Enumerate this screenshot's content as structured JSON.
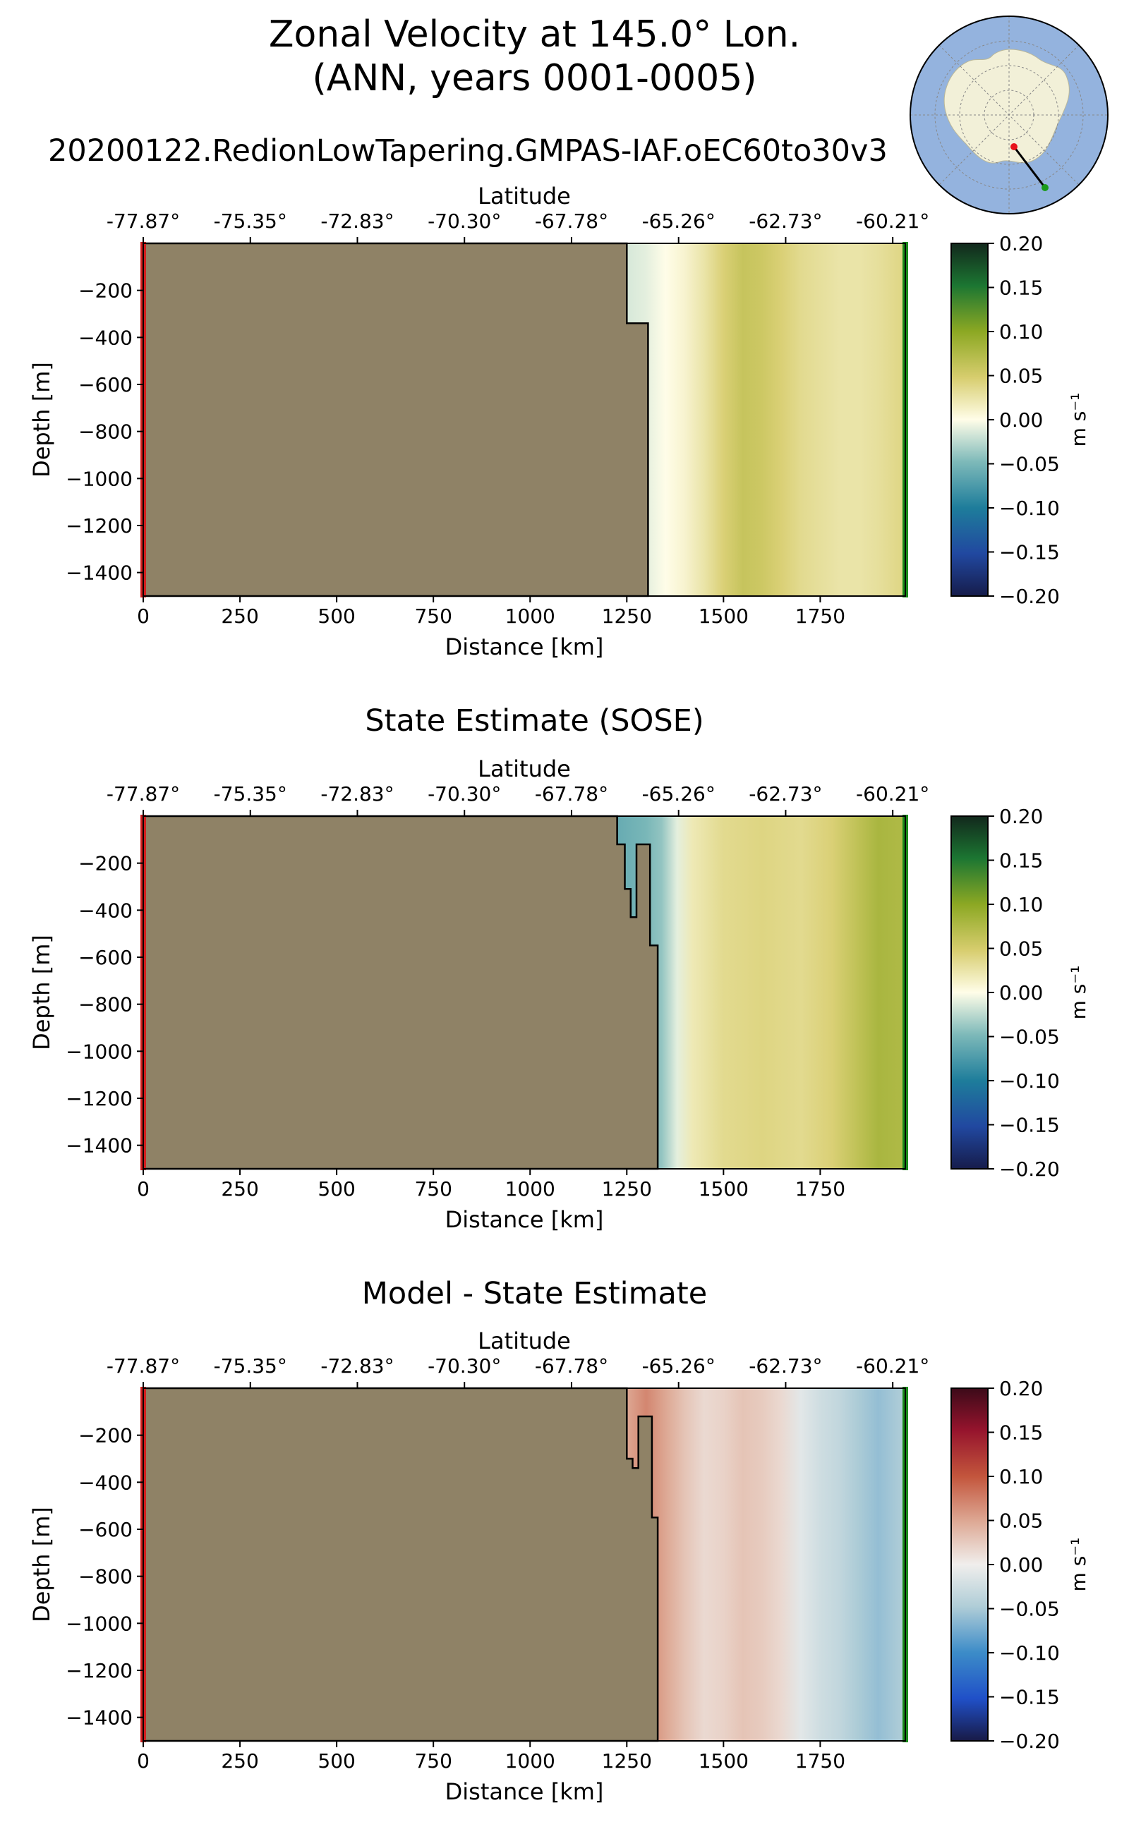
{
  "figure": {
    "title_line1": "Zonal Velocity at 145.0° Lon.",
    "title_line2": "(ANN, years 0001-0005)",
    "subtitle": "20200122.RedionLowTapering.GMPAS-IAF.oEC60to30v3"
  },
  "colors": {
    "land": "#8f8266",
    "start_marker": "#d21f1f",
    "end_marker": "#1a8a1a",
    "ocean_map": "#94b3de",
    "antarctica": "#f2f0d8"
  },
  "chart_data": [
    {
      "type": "heatmap",
      "title": "",
      "xlabel": "Distance [km]",
      "ylabel": "Depth [m]",
      "top_xlabel": "Latitude",
      "xlim": [
        0,
        1970
      ],
      "ylim": [
        -1500,
        0
      ],
      "xticks": [
        0,
        250,
        500,
        750,
        1000,
        1250,
        1500,
        1750
      ],
      "yticks": [
        -200,
        -400,
        -600,
        -800,
        -1000,
        -1200,
        -1400
      ],
      "top_ticks": [
        "-77.87°",
        "-75.35°",
        "-72.83°",
        "-70.30°",
        "-67.78°",
        "-65.26°",
        "-62.73°",
        "-60.21°"
      ],
      "colormap": "speed",
      "colorbar_label": "m s⁻¹",
      "colorbar_ticks": [
        0.2,
        0.15,
        0.1,
        0.05,
        0.0,
        -0.05,
        -0.1,
        -0.15,
        -0.2
      ],
      "clim": [
        -0.2,
        0.2
      ],
      "bathymetry": [
        [
          0,
          0
        ],
        [
          1250,
          0
        ],
        [
          1250,
          -340
        ],
        [
          1305,
          -340
        ],
        [
          1305,
          -1500
        ],
        [
          0,
          -1500
        ]
      ],
      "field_columns": [
        {
          "x": 1250,
          "v": -0.015
        },
        {
          "x": 1300,
          "v": -0.01
        },
        {
          "x": 1350,
          "v": 0.0
        },
        {
          "x": 1400,
          "v": 0.01
        },
        {
          "x": 1450,
          "v": 0.025
        },
        {
          "x": 1500,
          "v": 0.045
        },
        {
          "x": 1550,
          "v": 0.06
        },
        {
          "x": 1600,
          "v": 0.055
        },
        {
          "x": 1650,
          "v": 0.045
        },
        {
          "x": 1700,
          "v": 0.035
        },
        {
          "x": 1750,
          "v": 0.03
        },
        {
          "x": 1800,
          "v": 0.025
        },
        {
          "x": 1850,
          "v": 0.025
        },
        {
          "x": 1900,
          "v": 0.03
        },
        {
          "x": 1970,
          "v": 0.04
        }
      ]
    },
    {
      "type": "heatmap",
      "title": "State Estimate (SOSE)",
      "xlabel": "Distance [km]",
      "ylabel": "Depth [m]",
      "top_xlabel": "Latitude",
      "xlim": [
        0,
        1970
      ],
      "ylim": [
        -1500,
        0
      ],
      "xticks": [
        0,
        250,
        500,
        750,
        1000,
        1250,
        1500,
        1750
      ],
      "yticks": [
        -200,
        -400,
        -600,
        -800,
        -1000,
        -1200,
        -1400
      ],
      "top_ticks": [
        "-77.87°",
        "-75.35°",
        "-72.83°",
        "-70.30°",
        "-67.78°",
        "-65.26°",
        "-62.73°",
        "-60.21°"
      ],
      "colormap": "speed",
      "colorbar_label": "m s⁻¹",
      "colorbar_ticks": [
        0.2,
        0.15,
        0.1,
        0.05,
        0.0,
        -0.05,
        -0.1,
        -0.15,
        -0.2
      ],
      "clim": [
        -0.2,
        0.2
      ],
      "bathymetry": [
        [
          0,
          0
        ],
        [
          1225,
          0
        ],
        [
          1225,
          -120
        ],
        [
          1245,
          -120
        ],
        [
          1245,
          -310
        ],
        [
          1260,
          -310
        ],
        [
          1260,
          -430
        ],
        [
          1275,
          -430
        ],
        [
          1275,
          -120
        ],
        [
          1310,
          -120
        ],
        [
          1310,
          -550
        ],
        [
          1330,
          -550
        ],
        [
          1330,
          -1500
        ],
        [
          0,
          -1500
        ]
      ],
      "field_columns": [
        {
          "x": 1225,
          "v": -0.06
        },
        {
          "x": 1300,
          "v": -0.05
        },
        {
          "x": 1340,
          "v": -0.04
        },
        {
          "x": 1380,
          "v": -0.01
        },
        {
          "x": 1420,
          "v": 0.02
        },
        {
          "x": 1500,
          "v": 0.035
        },
        {
          "x": 1600,
          "v": 0.04
        },
        {
          "x": 1700,
          "v": 0.035
        },
        {
          "x": 1780,
          "v": 0.045
        },
        {
          "x": 1850,
          "v": 0.065
        },
        {
          "x": 1900,
          "v": 0.08
        },
        {
          "x": 1970,
          "v": 0.075
        }
      ]
    },
    {
      "type": "heatmap",
      "title": "Model - State Estimate",
      "xlabel": "Distance [km]",
      "ylabel": "Depth [m]",
      "top_xlabel": "Latitude",
      "xlim": [
        0,
        1970
      ],
      "ylim": [
        -1500,
        0
      ],
      "xticks": [
        0,
        250,
        500,
        750,
        1000,
        1250,
        1500,
        1750
      ],
      "yticks": [
        -200,
        -400,
        -600,
        -800,
        -1000,
        -1200,
        -1400
      ],
      "top_ticks": [
        "-77.87°",
        "-75.35°",
        "-72.83°",
        "-70.30°",
        "-67.78°",
        "-65.26°",
        "-62.73°",
        "-60.21°"
      ],
      "colormap": "balance",
      "colorbar_label": "m s⁻¹",
      "colorbar_ticks": [
        0.2,
        0.15,
        0.1,
        0.05,
        0.0,
        -0.05,
        -0.1,
        -0.15,
        -0.2
      ],
      "clim": [
        -0.2,
        0.2
      ],
      "bathymetry": [
        [
          0,
          0
        ],
        [
          1250,
          0
        ],
        [
          1250,
          -300
        ],
        [
          1265,
          -300
        ],
        [
          1265,
          -340
        ],
        [
          1280,
          -340
        ],
        [
          1280,
          -120
        ],
        [
          1315,
          -120
        ],
        [
          1315,
          -550
        ],
        [
          1330,
          -550
        ],
        [
          1330,
          -1500
        ],
        [
          0,
          -1500
        ]
      ],
      "field_columns": [
        {
          "x": 1250,
          "v": 0.05
        },
        {
          "x": 1300,
          "v": 0.07
        },
        {
          "x": 1350,
          "v": 0.05
        },
        {
          "x": 1400,
          "v": 0.03
        },
        {
          "x": 1450,
          "v": 0.015
        },
        {
          "x": 1500,
          "v": 0.02
        },
        {
          "x": 1550,
          "v": 0.03
        },
        {
          "x": 1600,
          "v": 0.025
        },
        {
          "x": 1650,
          "v": 0.015
        },
        {
          "x": 1700,
          "v": -0.01
        },
        {
          "x": 1750,
          "v": -0.025
        },
        {
          "x": 1800,
          "v": -0.035
        },
        {
          "x": 1850,
          "v": -0.05
        },
        {
          "x": 1900,
          "v": -0.06
        },
        {
          "x": 1970,
          "v": -0.045
        }
      ]
    }
  ]
}
